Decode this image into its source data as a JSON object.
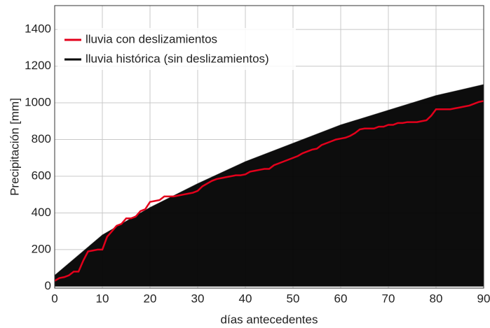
{
  "chart_data": {
    "type": "line",
    "x_label": "días antecedentes",
    "y_label": "Precipitación [mm]",
    "xlim": [
      0,
      90
    ],
    "ylim": [
      -10,
      1530
    ],
    "xticks": [
      0,
      10,
      20,
      30,
      40,
      50,
      60,
      70,
      80,
      90
    ],
    "yticks": [
      0,
      200,
      400,
      600,
      800,
      1000,
      1200,
      1400
    ],
    "grid": true,
    "legend": "upper left",
    "series": [
      {
        "name": "lluvia con deslizamientos",
        "color": "#e3001b",
        "kind": "line",
        "x": [
          0,
          1,
          2,
          3,
          4,
          5,
          6,
          7,
          8,
          9,
          10,
          11,
          12,
          13,
          14,
          15,
          16,
          17,
          18,
          19,
          20,
          21,
          22,
          23,
          24,
          25,
          26,
          27,
          28,
          29,
          30,
          31,
          32,
          33,
          34,
          35,
          36,
          37,
          38,
          39,
          40,
          41,
          42,
          43,
          44,
          45,
          46,
          47,
          48,
          49,
          50,
          51,
          52,
          53,
          54,
          55,
          56,
          57,
          58,
          59,
          60,
          61,
          62,
          63,
          64,
          65,
          66,
          67,
          68,
          69,
          70,
          71,
          72,
          73,
          74,
          75,
          76,
          77,
          78,
          79,
          80,
          81,
          82,
          83,
          84,
          85,
          86,
          87,
          88,
          89,
          90
        ],
        "values": [
          30,
          45,
          50,
          60,
          80,
          80,
          140,
          190,
          195,
          200,
          200,
          270,
          300,
          330,
          340,
          370,
          370,
          380,
          410,
          420,
          460,
          465,
          470,
          490,
          490,
          490,
          495,
          500,
          505,
          510,
          520,
          545,
          560,
          575,
          585,
          590,
          595,
          600,
          605,
          605,
          610,
          625,
          630,
          635,
          640,
          640,
          660,
          670,
          680,
          690,
          700,
          710,
          725,
          735,
          745,
          750,
          770,
          780,
          790,
          800,
          805,
          810,
          820,
          835,
          855,
          860,
          860,
          860,
          870,
          870,
          880,
          880,
          890,
          890,
          895,
          895,
          895,
          900,
          905,
          930,
          965,
          965,
          965,
          965,
          970,
          975,
          980,
          985,
          995,
          1005,
          1010
        ]
      },
      {
        "name": "lluvia histórica (sin deslizamientos)",
        "color": "#000000",
        "kind": "area",
        "x": [
          0,
          10,
          20,
          30,
          40,
          50,
          60,
          70,
          80,
          90
        ],
        "values": [
          60,
          280,
          430,
          560,
          680,
          780,
          880,
          960,
          1040,
          1100
        ]
      }
    ]
  }
}
